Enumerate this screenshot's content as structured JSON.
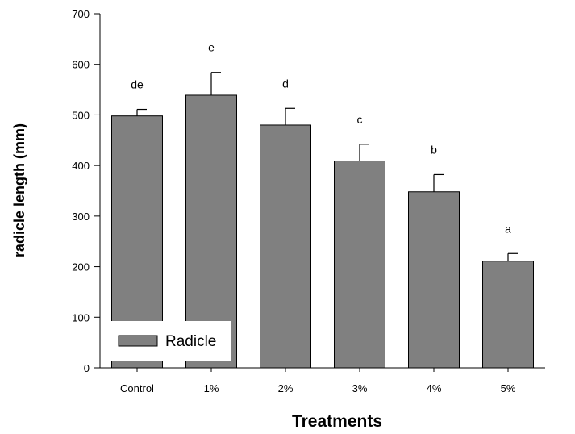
{
  "chart_data": {
    "type": "bar",
    "xlabel": "Treatments",
    "ylabel": "radicle length (mm)",
    "categories": [
      "Control",
      "1%",
      "2%",
      "3%",
      "4%",
      "5%"
    ],
    "series": [
      {
        "name": "Radicle",
        "values": [
          498,
          539,
          480,
          409,
          348,
          211
        ],
        "errors": [
          13,
          45,
          33,
          33,
          34,
          15
        ],
        "significance": [
          "de",
          "e",
          "d",
          "c",
          "b",
          "a"
        ]
      }
    ],
    "ylim": [
      0,
      700
    ],
    "yticks": [
      0,
      100,
      200,
      300,
      400,
      500,
      600,
      700
    ],
    "grid": false,
    "legend": "bottom-left",
    "colors": {
      "bar_fill": "#808080",
      "bar_stroke": "#000000"
    }
  }
}
